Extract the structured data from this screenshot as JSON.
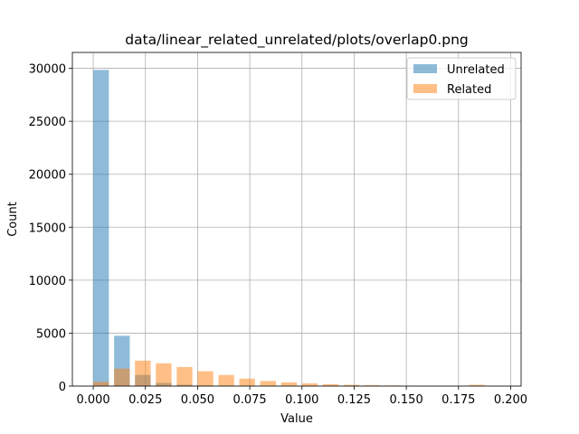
{
  "chart_data": {
    "type": "bar",
    "title": "data/linear_related_unrelated/plots/overlap0.png",
    "xlabel": "Value",
    "ylabel": "Count",
    "xlim": [
      -0.01,
      0.205
    ],
    "ylim": [
      0,
      31500
    ],
    "xticks": [
      0.0,
      0.025,
      0.05,
      0.075,
      0.1,
      0.125,
      0.15,
      0.175,
      0.2
    ],
    "xtick_labels": [
      "0.000",
      "0.025",
      "0.050",
      "0.075",
      "0.100",
      "0.125",
      "0.150",
      "0.175",
      "0.200"
    ],
    "yticks": [
      0,
      5000,
      10000,
      15000,
      20000,
      25000,
      30000
    ],
    "ytick_labels": [
      "0",
      "5000",
      "10000",
      "15000",
      "20000",
      "25000",
      "30000"
    ],
    "grid": true,
    "legend_position": "top-right",
    "bin_width": 0.01,
    "bar_width": 0.0075,
    "bin_starts": [
      0.0,
      0.01,
      0.02,
      0.03,
      0.04,
      0.05,
      0.06,
      0.07,
      0.08,
      0.09,
      0.1,
      0.11,
      0.12,
      0.13,
      0.14,
      0.15,
      0.16,
      0.17,
      0.18,
      0.19
    ],
    "series": [
      {
        "name": "Unrelated",
        "color": "#1f77b4",
        "opacity": 0.5,
        "values": [
          29850,
          4750,
          1050,
          300,
          120,
          60,
          30,
          15,
          8,
          4,
          2,
          1,
          0,
          0,
          0,
          0,
          0,
          0,
          0,
          0
        ]
      },
      {
        "name": "Related",
        "color": "#ff7f0e",
        "opacity": 0.5,
        "values": [
          400,
          1650,
          2400,
          2150,
          1800,
          1400,
          1050,
          700,
          480,
          350,
          250,
          180,
          120,
          80,
          60,
          40,
          25,
          20,
          120,
          10
        ]
      }
    ]
  }
}
